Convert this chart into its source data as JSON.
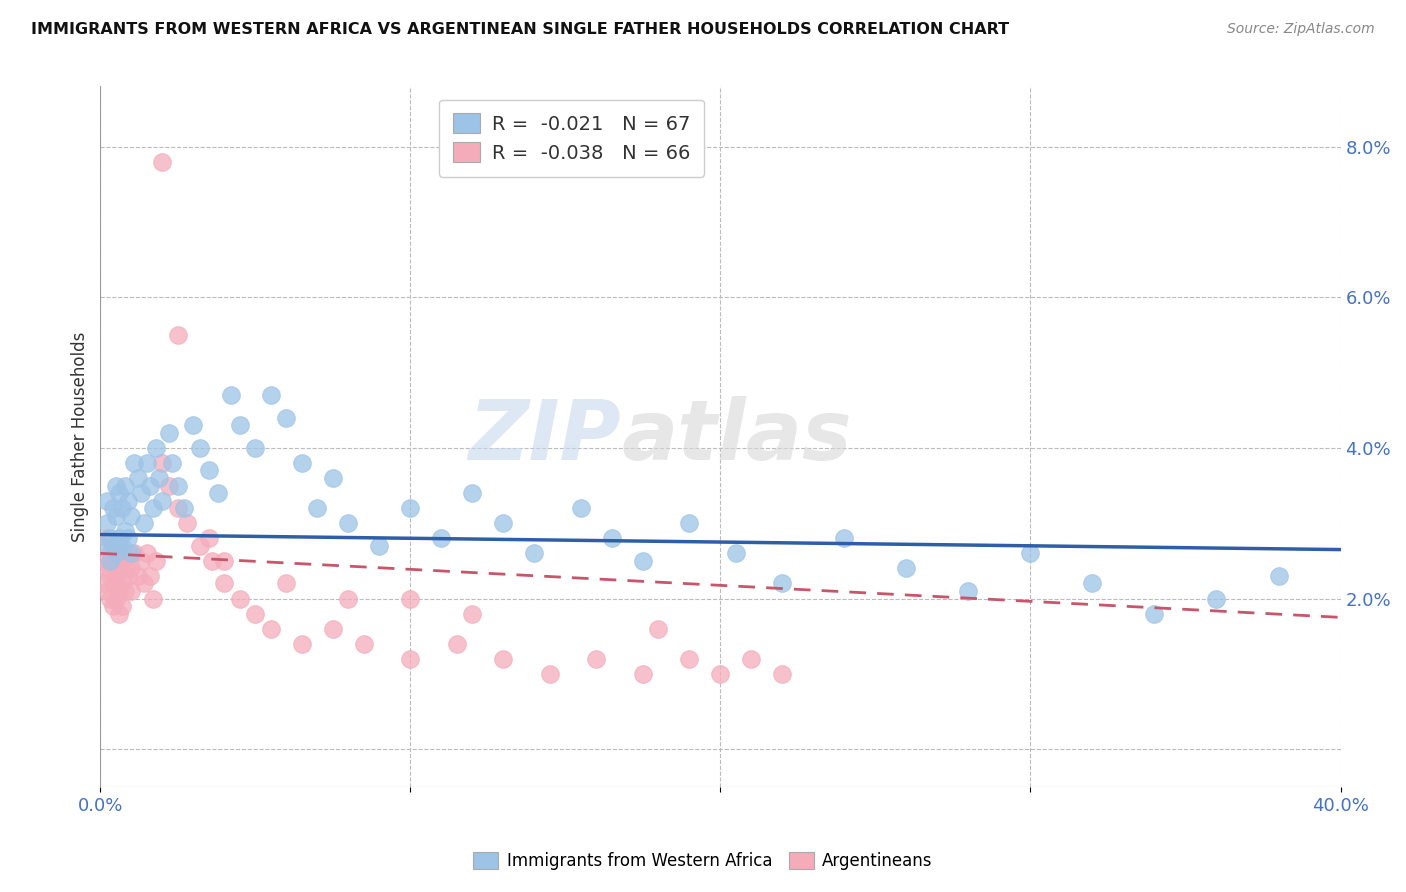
{
  "title": "IMMIGRANTS FROM WESTERN AFRICA VS ARGENTINEAN SINGLE FATHER HOUSEHOLDS CORRELATION CHART",
  "source": "Source: ZipAtlas.com",
  "ylabel": "Single Father Households",
  "xlim": [
    0.0,
    0.4
  ],
  "ylim": [
    -0.005,
    0.088
  ],
  "xticks": [
    0.0,
    0.1,
    0.2,
    0.3,
    0.4
  ],
  "xticklabels": [
    "0.0%",
    "",
    "",
    "",
    "40.0%"
  ],
  "yticks_right": [
    0.0,
    0.02,
    0.04,
    0.06,
    0.08
  ],
  "ytick_labels_right": [
    "",
    "2.0%",
    "4.0%",
    "6.0%",
    "8.0%"
  ],
  "blue_R": -0.021,
  "blue_N": 67,
  "pink_R": -0.038,
  "pink_N": 66,
  "blue_color": "#9DC3E6",
  "pink_color": "#F4ACBB",
  "blue_line_color": "#2E5EA8",
  "pink_line_color": "#C9556A",
  "legend_label_blue": "Immigrants from Western Africa",
  "legend_label_pink": "Argentineans",
  "watermark": "ZIPatlas",
  "blue_scatter_x": [
    0.001,
    0.002,
    0.002,
    0.003,
    0.003,
    0.004,
    0.004,
    0.005,
    0.005,
    0.005,
    0.006,
    0.006,
    0.007,
    0.007,
    0.008,
    0.008,
    0.009,
    0.009,
    0.01,
    0.01,
    0.011,
    0.012,
    0.013,
    0.014,
    0.015,
    0.016,
    0.017,
    0.018,
    0.019,
    0.02,
    0.022,
    0.023,
    0.025,
    0.027,
    0.03,
    0.032,
    0.035,
    0.038,
    0.042,
    0.045,
    0.05,
    0.055,
    0.06,
    0.065,
    0.07,
    0.075,
    0.08,
    0.09,
    0.1,
    0.11,
    0.12,
    0.13,
    0.14,
    0.155,
    0.165,
    0.175,
    0.19,
    0.205,
    0.22,
    0.24,
    0.26,
    0.28,
    0.3,
    0.32,
    0.34,
    0.36,
    0.38
  ],
  "blue_scatter_y": [
    0.027,
    0.03,
    0.033,
    0.025,
    0.028,
    0.032,
    0.027,
    0.026,
    0.031,
    0.035,
    0.028,
    0.034,
    0.027,
    0.032,
    0.029,
    0.035,
    0.028,
    0.033,
    0.026,
    0.031,
    0.038,
    0.036,
    0.034,
    0.03,
    0.038,
    0.035,
    0.032,
    0.04,
    0.036,
    0.033,
    0.042,
    0.038,
    0.035,
    0.032,
    0.043,
    0.04,
    0.037,
    0.034,
    0.047,
    0.043,
    0.04,
    0.047,
    0.044,
    0.038,
    0.032,
    0.036,
    0.03,
    0.027,
    0.032,
    0.028,
    0.034,
    0.03,
    0.026,
    0.032,
    0.028,
    0.025,
    0.03,
    0.026,
    0.022,
    0.028,
    0.024,
    0.021,
    0.026,
    0.022,
    0.018,
    0.02,
    0.023
  ],
  "pink_scatter_x": [
    0.001,
    0.001,
    0.002,
    0.002,
    0.002,
    0.003,
    0.003,
    0.003,
    0.004,
    0.004,
    0.004,
    0.005,
    0.005,
    0.005,
    0.006,
    0.006,
    0.006,
    0.007,
    0.007,
    0.007,
    0.008,
    0.008,
    0.009,
    0.009,
    0.01,
    0.01,
    0.011,
    0.012,
    0.013,
    0.014,
    0.015,
    0.016,
    0.017,
    0.018,
    0.02,
    0.022,
    0.025,
    0.028,
    0.032,
    0.036,
    0.04,
    0.045,
    0.05,
    0.055,
    0.065,
    0.075,
    0.085,
    0.1,
    0.115,
    0.13,
    0.145,
    0.16,
    0.175,
    0.19,
    0.2,
    0.21,
    0.22,
    0.1,
    0.12,
    0.18,
    0.02,
    0.025,
    0.035,
    0.04,
    0.06,
    0.08
  ],
  "pink_scatter_y": [
    0.025,
    0.022,
    0.024,
    0.028,
    0.021,
    0.026,
    0.023,
    0.02,
    0.025,
    0.022,
    0.019,
    0.026,
    0.023,
    0.02,
    0.024,
    0.021,
    0.018,
    0.025,
    0.022,
    0.019,
    0.024,
    0.021,
    0.026,
    0.023,
    0.024,
    0.021,
    0.026,
    0.023,
    0.025,
    0.022,
    0.026,
    0.023,
    0.02,
    0.025,
    0.038,
    0.035,
    0.032,
    0.03,
    0.027,
    0.025,
    0.022,
    0.02,
    0.018,
    0.016,
    0.014,
    0.016,
    0.014,
    0.012,
    0.014,
    0.012,
    0.01,
    0.012,
    0.01,
    0.012,
    0.01,
    0.012,
    0.01,
    0.02,
    0.018,
    0.016,
    0.078,
    0.055,
    0.028,
    0.025,
    0.022,
    0.02
  ],
  "blue_trend_x": [
    0.0,
    0.4
  ],
  "blue_trend_y": [
    0.0285,
    0.0265
  ],
  "pink_trend_x": [
    0.0,
    0.4
  ],
  "pink_trend_y": [
    0.026,
    0.0175
  ]
}
